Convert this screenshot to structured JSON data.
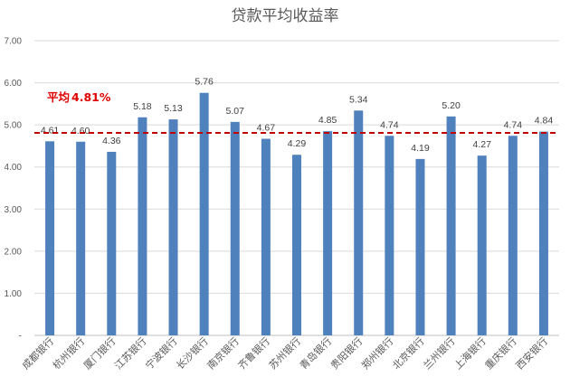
{
  "chart_data": {
    "type": "bar",
    "title": "贷款平均收益率",
    "categories": [
      "成都银行",
      "杭州银行",
      "厦门银行",
      "江苏银行",
      "宁波银行",
      "长沙银行",
      "南京银行",
      "齐鲁银行",
      "苏州银行",
      "青岛银行",
      "贵阳银行",
      "郑州银行",
      "北京银行",
      "兰州银行",
      "上海银行",
      "重庆银行",
      "西安银行"
    ],
    "values": [
      4.61,
      4.6,
      4.36,
      5.18,
      5.13,
      5.76,
      5.07,
      4.67,
      4.29,
      4.85,
      5.34,
      4.74,
      4.19,
      5.2,
      4.27,
      4.74,
      4.84
    ],
    "data_labels": [
      "4.61",
      "4.60",
      "4.36",
      "5.18",
      "5.13",
      "5.76",
      "5.07",
      "4.67",
      "4.29",
      "4.85",
      "5.34",
      "4.74",
      "4.19",
      "5.20",
      "4.27",
      "4.74",
      "4.84"
    ],
    "y_ticks": [
      "-",
      "1.00",
      "2.00",
      "3.00",
      "4.00",
      "5.00",
      "6.00",
      "7.00"
    ],
    "ylim": [
      0,
      7
    ],
    "grid": true,
    "bar_color": "#4f81bd",
    "average_line": {
      "value": 4.81,
      "label_prefix": "平均",
      "label_value": "4.81%",
      "color": "#c00000",
      "style": "dashed"
    }
  }
}
